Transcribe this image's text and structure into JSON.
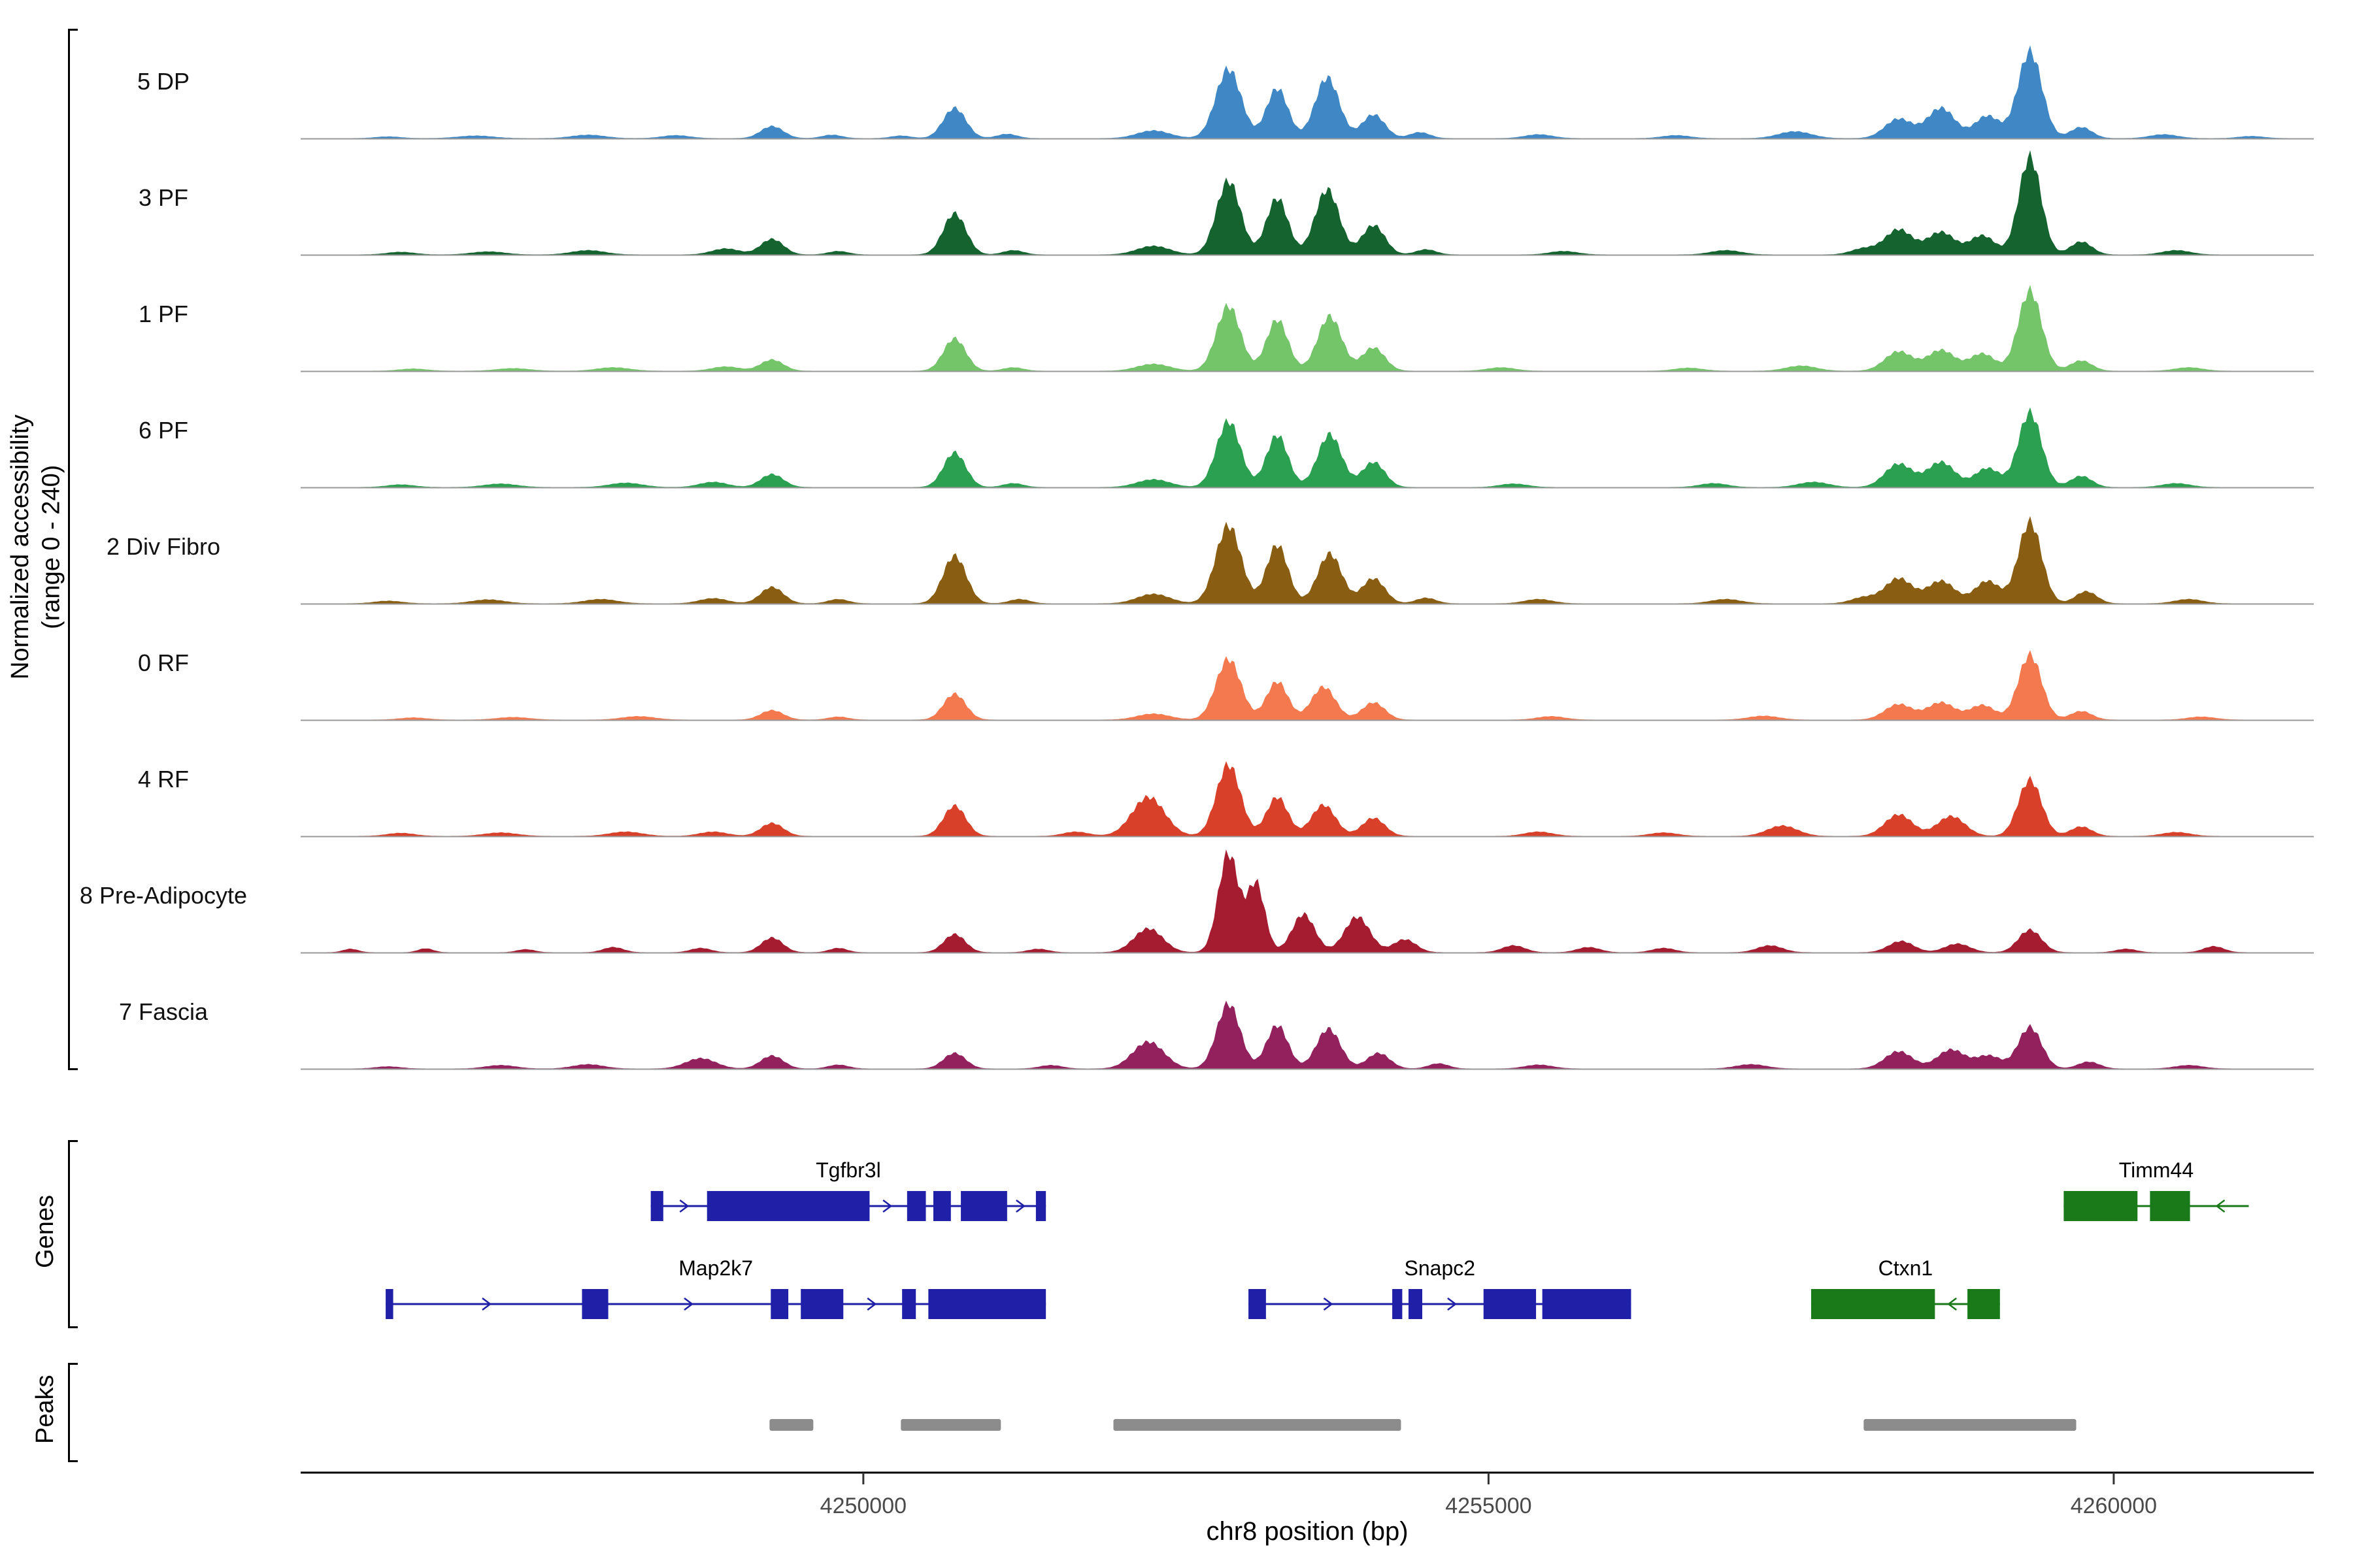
{
  "y_axis": {
    "label_line1": "Normalized accessibility",
    "label_line2": "(range 0 - 240)"
  },
  "sections": {
    "genes_label": "Genes",
    "peaks_label": "Peaks"
  },
  "x_axis": {
    "title": "chr8 position (bp)",
    "ticks": [
      4250000,
      4255000,
      4260000
    ],
    "tick_labels": [
      "4250000",
      "4255000",
      "4260000"
    ]
  },
  "chart_data": {
    "type": "area",
    "region": {
      "chrom": "chr8",
      "start": 4245500,
      "end": 4261600
    },
    "ylim": [
      0,
      240
    ],
    "tracks": [
      {
        "label": "5 DP",
        "color": "#3f88c5",
        "peaks": [
          [
            4246200,
            4,
            100
          ],
          [
            4246900,
            6,
            140
          ],
          [
            4247800,
            8,
            130
          ],
          [
            4248500,
            7,
            110
          ],
          [
            4249270,
            28,
            90
          ],
          [
            4249750,
            8,
            80
          ],
          [
            4250300,
            6,
            80
          ],
          [
            4250730,
            70,
            90
          ],
          [
            4251150,
            10,
            80
          ],
          [
            4252320,
            18,
            130
          ],
          [
            4252920,
            160,
            100
          ],
          [
            4253310,
            115,
            85
          ],
          [
            4253710,
            140,
            95
          ],
          [
            4254080,
            55,
            90
          ],
          [
            4254450,
            14,
            80
          ],
          [
            4255400,
            9,
            110
          ],
          [
            4256500,
            7,
            110
          ],
          [
            4257450,
            16,
            130
          ],
          [
            4258280,
            45,
            110
          ],
          [
            4258620,
            70,
            110
          ],
          [
            4258990,
            52,
            100
          ],
          [
            4259330,
            200,
            95
          ],
          [
            4259740,
            26,
            85
          ],
          [
            4260400,
            9,
            110
          ],
          [
            4261100,
            5,
            100
          ]
        ]
      },
      {
        "label": "3 PF",
        "color": "#156430",
        "peaks": [
          [
            4246300,
            6,
            110
          ],
          [
            4247000,
            7,
            130
          ],
          [
            4247800,
            10,
            130
          ],
          [
            4248900,
            14,
            110
          ],
          [
            4249270,
            36,
            90
          ],
          [
            4249800,
            8,
            80
          ],
          [
            4250730,
            95,
            90
          ],
          [
            4251200,
            10,
            80
          ],
          [
            4252320,
            20,
            130
          ],
          [
            4252920,
            170,
            95
          ],
          [
            4253310,
            130,
            85
          ],
          [
            4253710,
            150,
            95
          ],
          [
            4254080,
            68,
            90
          ],
          [
            4254500,
            12,
            80
          ],
          [
            4255600,
            8,
            110
          ],
          [
            4256900,
            10,
            120
          ],
          [
            4258000,
            14,
            100
          ],
          [
            4258280,
            58,
            110
          ],
          [
            4258620,
            52,
            110
          ],
          [
            4258950,
            44,
            100
          ],
          [
            4259330,
            225,
            88
          ],
          [
            4259740,
            30,
            85
          ],
          [
            4260500,
            10,
            110
          ]
        ]
      },
      {
        "label": "1 PF",
        "color": "#74c46a",
        "peaks": [
          [
            4246400,
            5,
            110
          ],
          [
            4247200,
            6,
            130
          ],
          [
            4248000,
            8,
            130
          ],
          [
            4248900,
            10,
            110
          ],
          [
            4249270,
            26,
            90
          ],
          [
            4250730,
            75,
            88
          ],
          [
            4251200,
            8,
            80
          ],
          [
            4252320,
            16,
            130
          ],
          [
            4252920,
            150,
            95
          ],
          [
            4253310,
            118,
            85
          ],
          [
            4253730,
            126,
            95
          ],
          [
            4254080,
            54,
            90
          ],
          [
            4255100,
            8,
            110
          ],
          [
            4256600,
            7,
            110
          ],
          [
            4257500,
            12,
            120
          ],
          [
            4258280,
            45,
            110
          ],
          [
            4258620,
            48,
            110
          ],
          [
            4258950,
            40,
            100
          ],
          [
            4259330,
            185,
            92
          ],
          [
            4259740,
            24,
            85
          ],
          [
            4260600,
            8,
            110
          ]
        ]
      },
      {
        "label": "6 PF",
        "color": "#2aa050",
        "peaks": [
          [
            4246300,
            6,
            110
          ],
          [
            4247100,
            8,
            130
          ],
          [
            4248100,
            10,
            130
          ],
          [
            4248800,
            12,
            110
          ],
          [
            4249270,
            30,
            90
          ],
          [
            4250730,
            80,
            88
          ],
          [
            4251200,
            9,
            80
          ],
          [
            4252320,
            18,
            130
          ],
          [
            4252920,
            152,
            95
          ],
          [
            4253310,
            120,
            85
          ],
          [
            4253730,
            122,
            95
          ],
          [
            4254080,
            58,
            90
          ],
          [
            4255200,
            8,
            110
          ],
          [
            4256800,
            9,
            110
          ],
          [
            4257600,
            12,
            120
          ],
          [
            4258280,
            54,
            110
          ],
          [
            4258620,
            58,
            110
          ],
          [
            4258990,
            44,
            100
          ],
          [
            4259330,
            172,
            92
          ],
          [
            4259740,
            26,
            85
          ],
          [
            4260500,
            9,
            110
          ]
        ]
      },
      {
        "label": "2 Div Fibro",
        "color": "#8a5e12",
        "peaks": [
          [
            4246200,
            6,
            110
          ],
          [
            4247000,
            9,
            130
          ],
          [
            4247900,
            10,
            130
          ],
          [
            4248800,
            12,
            110
          ],
          [
            4249270,
            38,
            90
          ],
          [
            4249800,
            10,
            80
          ],
          [
            4250730,
            110,
            92
          ],
          [
            4251250,
            10,
            80
          ],
          [
            4252320,
            22,
            130
          ],
          [
            4252920,
            180,
            100
          ],
          [
            4253310,
            135,
            85
          ],
          [
            4253730,
            115,
            95
          ],
          [
            4254080,
            58,
            90
          ],
          [
            4254500,
            13,
            80
          ],
          [
            4255400,
            10,
            110
          ],
          [
            4256900,
            10,
            120
          ],
          [
            4258000,
            14,
            100
          ],
          [
            4258280,
            58,
            110
          ],
          [
            4258620,
            52,
            110
          ],
          [
            4258990,
            52,
            100
          ],
          [
            4259330,
            188,
            92
          ],
          [
            4259780,
            28,
            85
          ],
          [
            4260600,
            10,
            110
          ]
        ]
      },
      {
        "label": "0 RF",
        "color": "#f4794e",
        "peaks": [
          [
            4246400,
            5,
            110
          ],
          [
            4247200,
            6,
            130
          ],
          [
            4248200,
            8,
            130
          ],
          [
            4249270,
            22,
            90
          ],
          [
            4249800,
            7,
            80
          ],
          [
            4250730,
            60,
            88
          ],
          [
            4252320,
            14,
            130
          ],
          [
            4252920,
            140,
            98
          ],
          [
            4253310,
            88,
            85
          ],
          [
            4253680,
            76,
            95
          ],
          [
            4254080,
            40,
            90
          ],
          [
            4255500,
            8,
            110
          ],
          [
            4257200,
            9,
            120
          ],
          [
            4258280,
            36,
            110
          ],
          [
            4258620,
            40,
            110
          ],
          [
            4258950,
            34,
            100
          ],
          [
            4259330,
            150,
            92
          ],
          [
            4259740,
            20,
            85
          ],
          [
            4260700,
            7,
            110
          ]
        ]
      },
      {
        "label": "4 RF",
        "color": "#d8402a",
        "peaks": [
          [
            4246300,
            7,
            110
          ],
          [
            4247100,
            8,
            130
          ],
          [
            4248100,
            10,
            130
          ],
          [
            4248800,
            10,
            110
          ],
          [
            4249270,
            30,
            90
          ],
          [
            4250730,
            70,
            88
          ],
          [
            4251700,
            10,
            100
          ],
          [
            4252280,
            90,
            130
          ],
          [
            4252920,
            165,
            95
          ],
          [
            4253310,
            90,
            85
          ],
          [
            4253680,
            72,
            95
          ],
          [
            4254080,
            42,
            90
          ],
          [
            4255400,
            10,
            110
          ],
          [
            4256400,
            8,
            110
          ],
          [
            4257350,
            24,
            120
          ],
          [
            4258280,
            50,
            110
          ],
          [
            4258700,
            46,
            110
          ],
          [
            4259330,
            130,
            92
          ],
          [
            4259740,
            22,
            85
          ],
          [
            4260500,
            9,
            110
          ]
        ]
      },
      {
        "label": "8 Pre-Adipocyte",
        "color": "#a51c30",
        "peaks": [
          [
            4245900,
            8,
            60
          ],
          [
            4246500,
            9,
            60
          ],
          [
            4247300,
            7,
            70
          ],
          [
            4248000,
            12,
            80
          ],
          [
            4248700,
            10,
            80
          ],
          [
            4249270,
            34,
            85
          ],
          [
            4249800,
            10,
            70
          ],
          [
            4250730,
            42,
            85
          ],
          [
            4251400,
            8,
            80
          ],
          [
            4252280,
            55,
            115
          ],
          [
            4252920,
            228,
            80
          ],
          [
            4253140,
            158,
            70
          ],
          [
            4253520,
            88,
            90
          ],
          [
            4253950,
            82,
            100
          ],
          [
            4254330,
            30,
            90
          ],
          [
            4255200,
            16,
            90
          ],
          [
            4255800,
            12,
            90
          ],
          [
            4256400,
            10,
            90
          ],
          [
            4257250,
            16,
            100
          ],
          [
            4258300,
            26,
            100
          ],
          [
            4258750,
            20,
            100
          ],
          [
            4259330,
            52,
            92
          ],
          [
            4260100,
            8,
            80
          ],
          [
            4260800,
            14,
            80
          ]
        ]
      },
      {
        "label": "7 Fascia",
        "color": "#92215d",
        "peaks": [
          [
            4246200,
            5,
            100
          ],
          [
            4247100,
            8,
            120
          ],
          [
            4247800,
            10,
            120
          ],
          [
            4248700,
            24,
            120
          ],
          [
            4249270,
            30,
            90
          ],
          [
            4249800,
            9,
            80
          ],
          [
            4250730,
            36,
            88
          ],
          [
            4251500,
            8,
            90
          ],
          [
            4252280,
            62,
            125
          ],
          [
            4252920,
            150,
            92
          ],
          [
            4253310,
            100,
            85
          ],
          [
            4253720,
            92,
            95
          ],
          [
            4254120,
            36,
            90
          ],
          [
            4254600,
            12,
            80
          ],
          [
            4255400,
            9,
            110
          ],
          [
            4257100,
            10,
            120
          ],
          [
            4258280,
            40,
            110
          ],
          [
            4258700,
            44,
            110
          ],
          [
            4259000,
            30,
            100
          ],
          [
            4259330,
            96,
            92
          ],
          [
            4259800,
            16,
            85
          ],
          [
            4260600,
            8,
            110
          ]
        ]
      }
    ],
    "genes": [
      {
        "name": "Tgfbr3l",
        "strand": "+",
        "row": 0,
        "color": "#1f1fa8",
        "start": 4248300,
        "end": 4251460,
        "exons": [
          [
            4248300,
            4248400
          ],
          [
            4248750,
            4250050
          ],
          [
            4250350,
            4250500
          ],
          [
            4250560,
            4250700
          ],
          [
            4250780,
            4251150
          ],
          [
            4251380,
            4251460
          ]
        ]
      },
      {
        "name": "Timm44",
        "strand": "-",
        "row": 0,
        "color": "#1a7a1a",
        "start": 4259600,
        "end": 4261080,
        "exons": [
          [
            4259600,
            4260190
          ],
          [
            4260290,
            4260610
          ]
        ]
      },
      {
        "name": "Map2k7",
        "strand": "+",
        "row": 1,
        "color": "#1f1fa8",
        "start": 4246180,
        "end": 4251460,
        "exons": [
          [
            4246180,
            4246240
          ],
          [
            4247750,
            4247960
          ],
          [
            4249260,
            4249400
          ],
          [
            4249500,
            4249840
          ],
          [
            4250310,
            4250420
          ],
          [
            4250520,
            4251460
          ]
        ]
      },
      {
        "name": "Snapc2",
        "strand": "+",
        "row": 1,
        "color": "#1f1fa8",
        "start": 4253080,
        "end": 4256140,
        "exons": [
          [
            4253080,
            4253220
          ],
          [
            4254230,
            4254310
          ],
          [
            4254360,
            4254470
          ],
          [
            4254960,
            4255380
          ],
          [
            4255430,
            4256140
          ]
        ]
      },
      {
        "name": "Ctxn1",
        "strand": "-",
        "row": 1,
        "color": "#1a7a1a",
        "start": 4257580,
        "end": 4259090,
        "exons": [
          [
            4257580,
            4258570
          ],
          [
            4258830,
            4259090
          ]
        ]
      }
    ],
    "peaks": [
      [
        4249250,
        4249600
      ],
      [
        4250300,
        4251100
      ],
      [
        4252000,
        4254300
      ],
      [
        4258000,
        4259700
      ]
    ],
    "peak_color": "#8c8c8c",
    "baseline_color": "#999999"
  }
}
